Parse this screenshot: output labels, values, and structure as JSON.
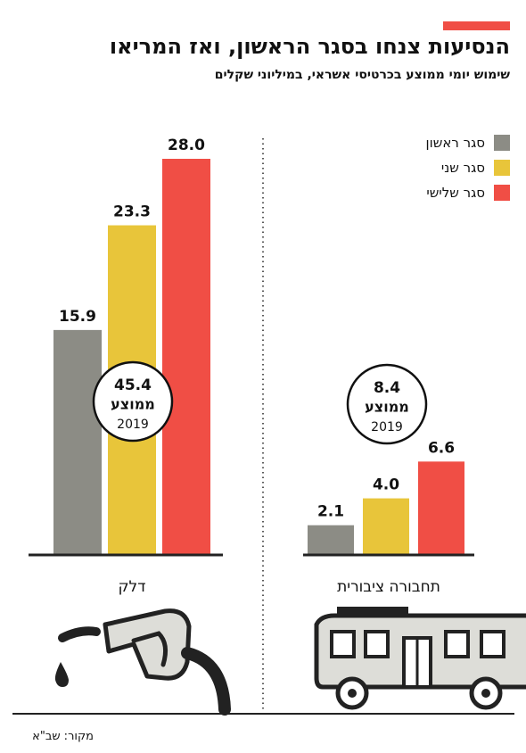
{
  "header": {
    "title": "הנסיעות צנחו בסגר הראשון, ואז המריאו",
    "subtitle": "שימוש יומי ממוצע בכרטיסי אשראי, במיליוני שקלים",
    "accent_color": "#f04e45"
  },
  "legend": {
    "items": [
      {
        "label": "סגר ראשון",
        "color": "#8c8c85"
      },
      {
        "label": "סגר שני",
        "color": "#e8c53a"
      },
      {
        "label": "סגר שלישי",
        "color": "#f04e45"
      }
    ]
  },
  "chart_data": {
    "type": "bar",
    "categories": [
      "דלק",
      "תחבורה ציבורית"
    ],
    "series": [
      {
        "name": "סגר ראשון",
        "values": [
          15.9,
          2.1
        ],
        "color": "#8c8c85"
      },
      {
        "name": "סגר שני",
        "values": [
          23.3,
          4.0
        ],
        "color": "#e8c53a"
      },
      {
        "name": "סגר שלישי",
        "values": [
          28.0,
          6.6
        ],
        "color": "#f04e45"
      }
    ],
    "data_labels": [
      [
        "15.9",
        "23.3",
        "28.0"
      ],
      [
        "2.1",
        "4.0",
        "6.6"
      ]
    ],
    "annotations": [
      {
        "category": "דלק",
        "value": "45.4",
        "line1": "ממוצע",
        "line2": "2019"
      },
      {
        "category": "תחבורה ציבורית",
        "value": "8.4",
        "line1": "ממוצע",
        "line2": "2019"
      }
    ],
    "ylim": [
      0,
      28
    ],
    "legend_position": "top-right",
    "grid": false
  },
  "source": "מקור: שב\"א"
}
